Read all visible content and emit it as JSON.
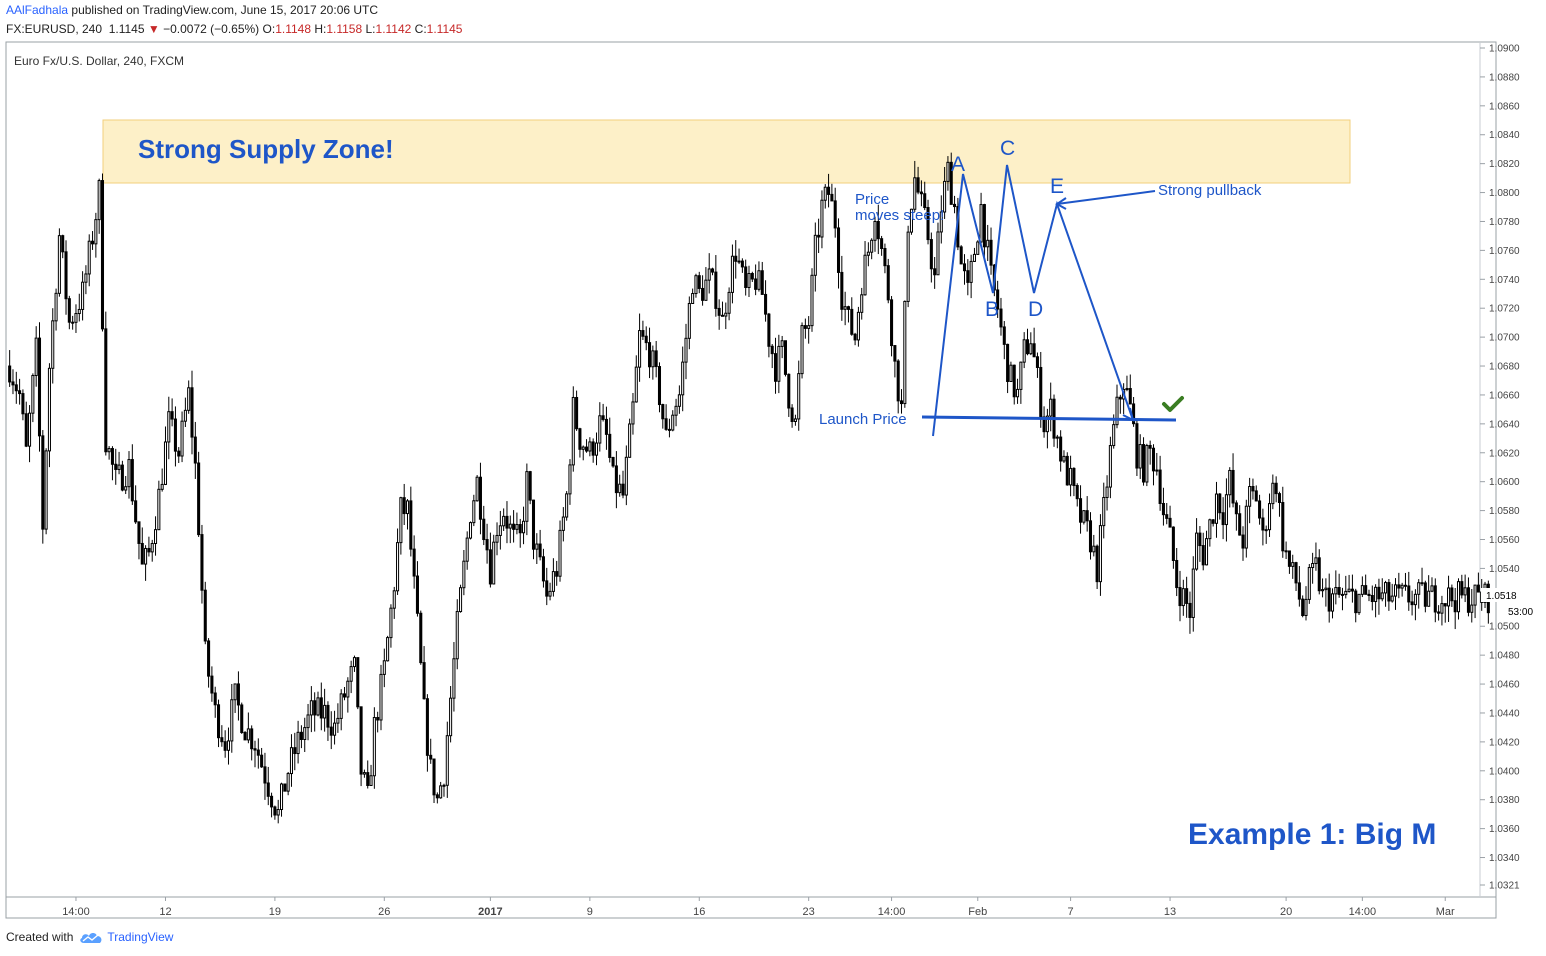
{
  "header": {
    "author": "AAlFadhala",
    "published": "published on TradingView.com, June 15, 2017 20:06 UTC",
    "symbol": "FX:EURUSD, 240",
    "last": "1.1145",
    "change_arrow": "▼",
    "change": "−0.0072 (−0.65%)",
    "o_label": "O:",
    "o": "1.1148",
    "h_label": "H:",
    "h": "1.1158",
    "l_label": "L:",
    "l": "1.1142",
    "c_label": "C:",
    "c": "1.1145"
  },
  "footer": {
    "created_with": "Created with",
    "brand": "TradingView",
    "logo_icon": "tradingview-cloud-icon"
  },
  "colors": {
    "accent_blue": "#1e56c8",
    "supply_zone_fill": "#fdf0c8",
    "supply_zone_border": "#f2cf7d",
    "candle": "#000000",
    "check_green": "#3a7d22"
  },
  "chart_data": {
    "type": "candlestick",
    "title": "Euro Fx/U.S. Dollar, 240, FXCM",
    "ylim": [
      1.0315,
      1.0905
    ],
    "yticks": [
      "1.0900",
      "1.0880",
      "1.0860",
      "1.0840",
      "1.0820",
      "1.0800",
      "1.0780",
      "1.0760",
      "1.0740",
      "1.0720",
      "1.0700",
      "1.0680",
      "1.0660",
      "1.0640",
      "1.0620",
      "1.0600",
      "1.0580",
      "1.0560",
      "1.0540",
      "1.0500",
      "1.0480",
      "1.0460",
      "1.0440",
      "1.0420",
      "1.0400",
      "1.0380",
      "1.0360",
      "1.0340",
      "1.0321"
    ],
    "xticks": [
      {
        "label": "14:00",
        "i": 20
      },
      {
        "label": "12",
        "i": 47
      },
      {
        "label": "19",
        "i": 80
      },
      {
        "label": "26",
        "i": 113
      },
      {
        "label": "2017",
        "i": 145
      },
      {
        "label": "9",
        "i": 175
      },
      {
        "label": "16",
        "i": 208
      },
      {
        "label": "23",
        "i": 241
      },
      {
        "label": "14:00",
        "i": 266
      },
      {
        "label": "Feb",
        "i": 292
      },
      {
        "label": "7",
        "i": 320
      },
      {
        "label": "13",
        "i": 350
      },
      {
        "label": "20",
        "i": 385
      },
      {
        "label": "14:00",
        "i": 408
      },
      {
        "label": "Mar",
        "i": 433
      }
    ],
    "last_price_label": "1.0518",
    "countdown_label": "53:00",
    "anchors": [
      [
        0,
        1.068
      ],
      [
        3,
        1.066
      ],
      [
        5,
        1.062
      ],
      [
        8,
        1.069
      ],
      [
        10,
        1.057
      ],
      [
        12,
        1.068
      ],
      [
        15,
        1.077
      ],
      [
        18,
        1.071
      ],
      [
        22,
        1.073
      ],
      [
        25,
        1.077
      ],
      [
        27,
        1.08
      ],
      [
        29,
        1.063
      ],
      [
        32,
        1.06
      ],
      [
        36,
        1.061
      ],
      [
        40,
        1.054
      ],
      [
        42,
        1.055
      ],
      [
        45,
        1.059
      ],
      [
        48,
        1.064
      ],
      [
        51,
        1.062
      ],
      [
        54,
        1.066
      ],
      [
        56,
        1.061
      ],
      [
        57,
        1.057
      ],
      [
        59,
        1.048
      ],
      [
        62,
        1.044
      ],
      [
        65,
        1.042
      ],
      [
        68,
        1.045
      ],
      [
        71,
        1.043
      ],
      [
        74,
        1.042
      ],
      [
        78,
        1.039
      ],
      [
        81,
        1.037
      ],
      [
        84,
        1.04
      ],
      [
        87,
        1.042
      ],
      [
        91,
        1.044
      ],
      [
        95,
        1.044
      ],
      [
        98,
        1.043
      ],
      [
        102,
        1.046
      ],
      [
        104,
        1.047
      ],
      [
        106,
        1.04
      ],
      [
        108,
        1.038
      ],
      [
        110,
        1.043
      ],
      [
        113,
        1.047
      ],
      [
        116,
        1.053
      ],
      [
        118,
        1.058
      ],
      [
        120,
        1.058
      ],
      [
        123,
        1.05
      ],
      [
        125,
        1.044
      ],
      [
        127,
        1.04
      ],
      [
        129,
        1.038
      ],
      [
        131,
        1.04
      ],
      [
        133,
        1.045
      ],
      [
        135,
        1.05
      ],
      [
        137,
        1.054
      ],
      [
        139,
        1.058
      ],
      [
        141,
        1.06
      ],
      [
        143,
        1.057
      ],
      [
        145,
        1.054
      ],
      [
        147,
        1.057
      ],
      [
        149,
        1.058
      ],
      [
        152,
        1.056
      ],
      [
        154,
        1.056
      ],
      [
        156,
        1.06
      ],
      [
        158,
        1.056
      ],
      [
        160,
        1.054
      ],
      [
        162,
        1.052
      ],
      [
        165,
        1.054
      ],
      [
        168,
        1.059
      ],
      [
        170,
        1.065
      ],
      [
        172,
        1.063
      ],
      [
        175,
        1.062
      ],
      [
        178,
        1.064
      ],
      [
        180,
        1.063
      ],
      [
        182,
        1.06
      ],
      [
        185,
        1.059
      ],
      [
        188,
        1.065
      ],
      [
        190,
        1.07
      ],
      [
        193,
        1.069
      ],
      [
        196,
        1.066
      ],
      [
        198,
        1.063
      ],
      [
        200,
        1.065
      ],
      [
        202,
        1.066
      ],
      [
        204,
        1.07
      ],
      [
        206,
        1.074
      ],
      [
        208,
        1.073
      ],
      [
        211,
        1.074
      ],
      [
        213,
        1.073
      ],
      [
        215,
        1.071
      ],
      [
        217,
        1.074
      ],
      [
        219,
        1.076
      ],
      [
        222,
        1.073
      ],
      [
        225,
        1.074
      ],
      [
        227,
        1.073
      ],
      [
        229,
        1.07
      ],
      [
        231,
        1.068
      ],
      [
        233,
        1.069
      ],
      [
        235,
        1.066
      ],
      [
        237,
        1.064
      ],
      [
        239,
        1.07
      ],
      [
        241,
        1.071
      ],
      [
        243,
        1.076
      ],
      [
        245,
        1.079
      ],
      [
        247,
        1.08
      ],
      [
        249,
        1.078
      ],
      [
        251,
        1.073
      ],
      [
        253,
        1.071
      ],
      [
        255,
        1.07
      ],
      [
        257,
        1.074
      ],
      [
        259,
        1.076
      ],
      [
        261,
        1.079
      ],
      [
        263,
        1.076
      ],
      [
        265,
        1.073
      ],
      [
        267,
        1.068
      ],
      [
        269,
        1.065
      ],
      [
        271,
        1.078
      ],
      [
        273,
        1.081
      ],
      [
        275,
        1.079
      ],
      [
        277,
        1.077
      ],
      [
        279,
        1.074
      ],
      [
        281,
        1.079
      ],
      [
        283,
        1.0815
      ],
      [
        285,
        1.079
      ],
      [
        287,
        1.075
      ],
      [
        289,
        1.073
      ],
      [
        291,
        1.076
      ],
      [
        293,
        1.079
      ],
      [
        296,
        1.074
      ],
      [
        298,
        1.072
      ],
      [
        300,
        1.069
      ],
      [
        302,
        1.067
      ],
      [
        304,
        1.066
      ],
      [
        306,
        1.069
      ],
      [
        308,
        1.07
      ],
      [
        310,
        1.067
      ],
      [
        312,
        1.064
      ],
      [
        314,
        1.065
      ],
      [
        316,
        1.063
      ],
      [
        318,
        1.061
      ],
      [
        320,
        1.06
      ],
      [
        322,
        1.058
      ],
      [
        324,
        1.057
      ],
      [
        326,
        1.056
      ],
      [
        328,
        1.054
      ],
      [
        330,
        1.058
      ],
      [
        332,
        1.062
      ],
      [
        334,
        1.065
      ],
      [
        336,
        1.067
      ],
      [
        338,
        1.065
      ],
      [
        340,
        1.062
      ],
      [
        342,
        1.061
      ],
      [
        344,
        1.062
      ],
      [
        346,
        1.061
      ],
      [
        348,
        1.058
      ],
      [
        350,
        1.056
      ],
      [
        352,
        1.053
      ],
      [
        354,
        1.052
      ],
      [
        356,
        1.051
      ],
      [
        358,
        1.056
      ],
      [
        360,
        1.055
      ],
      [
        362,
        1.057
      ],
      [
        364,
        1.059
      ],
      [
        366,
        1.058
      ],
      [
        368,
        1.06
      ],
      [
        370,
        1.057
      ],
      [
        372,
        1.056
      ],
      [
        374,
        1.059
      ],
      [
        376,
        1.059
      ],
      [
        378,
        1.056
      ],
      [
        380,
        1.059
      ],
      [
        382,
        1.06
      ],
      [
        384,
        1.056
      ],
      [
        386,
        1.054
      ],
      [
        388,
        1.053
      ],
      [
        390,
        1.051
      ],
      [
        392,
        1.053
      ],
      [
        394,
        1.054
      ],
      [
        396,
        1.052
      ]
    ],
    "n_bars": 447,
    "annotations": {
      "supply_zone_label": "Strong Supply Zone!",
      "price_moves_steep_1": "Price",
      "price_moves_steep_2": "moves steep!",
      "strong_pullback": "Strong pullback",
      "launch_price": "Launch Price",
      "point_a": "A",
      "point_b": "B",
      "point_c": "C",
      "point_d": "D",
      "point_e": "E",
      "example": "Example 1: Big M",
      "check_icon": "checkmark-icon"
    }
  }
}
